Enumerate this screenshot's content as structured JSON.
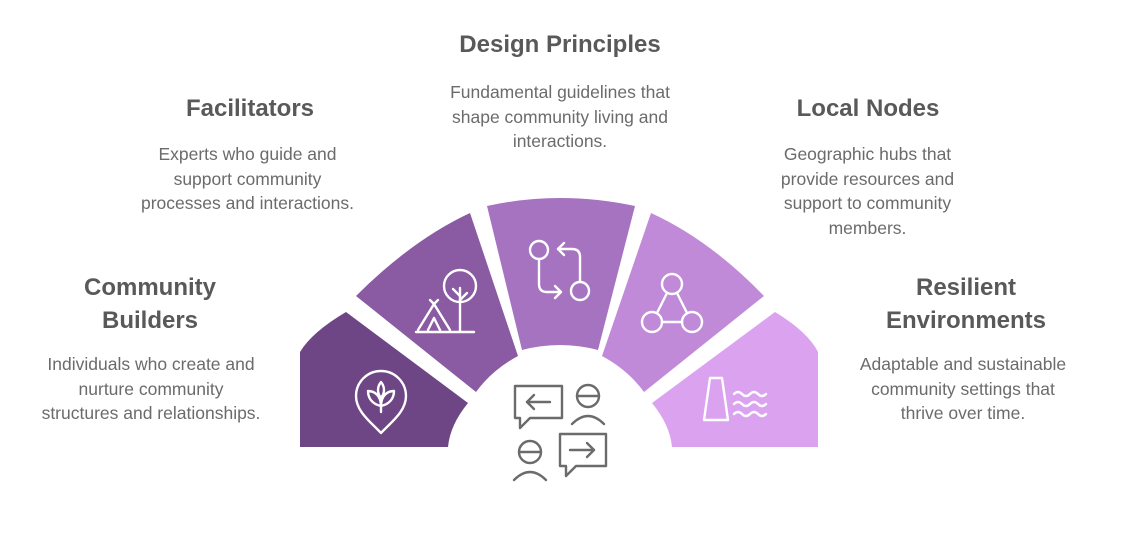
{
  "items": [
    {
      "key": "community-builders",
      "title_lines": [
        "Community",
        "Builders"
      ],
      "desc": "Individuals who create and nurture community structures and relationships.",
      "color": "#6e4585",
      "icon": "leaf-pin-icon"
    },
    {
      "key": "facilitators",
      "title_lines": [
        "Facilitators"
      ],
      "desc": "Experts who guide and support community processes and interactions.",
      "color": "#8a5aa3",
      "icon": "tent-tree-icon"
    },
    {
      "key": "design-principles",
      "title_lines": [
        "Design Principles"
      ],
      "desc": "Fundamental guidelines that shape community living and interactions.",
      "color": "#a673c1",
      "icon": "workflow-arrows-icon"
    },
    {
      "key": "local-nodes",
      "title_lines": [
        "Local Nodes"
      ],
      "desc": "Geographic hubs that provide resources and support to community members.",
      "color": "#c08ad9",
      "icon": "network-nodes-icon"
    },
    {
      "key": "resilient-environments",
      "title_lines": [
        "Resilient",
        "Environments"
      ],
      "desc": "Adaptable and sustainable community settings that thrive over time.",
      "color": "#dba2f0",
      "icon": "dam-water-icon"
    }
  ],
  "center_icon": "conversation-icon"
}
